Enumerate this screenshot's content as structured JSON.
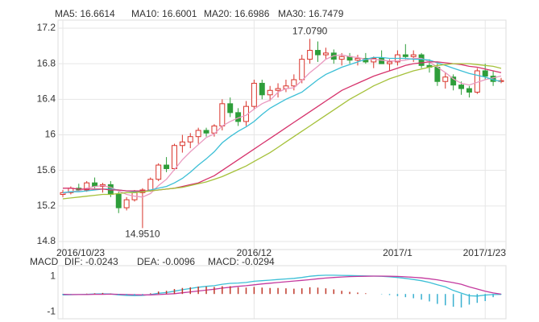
{
  "chart_data": [
    {
      "type": "candlestick",
      "categories": [
        "2016/10/23",
        null,
        null,
        null,
        null,
        null,
        null,
        null,
        null,
        null,
        null,
        null,
        null,
        null,
        null,
        null,
        null,
        null,
        null,
        null,
        null,
        null,
        null,
        null,
        "2016/12",
        null,
        null,
        null,
        null,
        null,
        null,
        null,
        null,
        null,
        null,
        null,
        null,
        null,
        null,
        null,
        null,
        null,
        "2017/1",
        null,
        null,
        null,
        null,
        null,
        null,
        null,
        null,
        null,
        null,
        "2017/1/23",
        null,
        null
      ],
      "open": [
        15.33,
        15.35,
        15.4,
        15.38,
        15.46,
        15.42,
        15.44,
        15.33,
        15.18,
        15.27,
        15.35,
        15.38,
        15.5,
        15.66,
        15.62,
        15.88,
        15.92,
        15.98,
        16.05,
        16.02,
        16.1,
        16.35,
        16.25,
        16.15,
        16.32,
        16.58,
        16.45,
        16.5,
        16.52,
        16.55,
        16.62,
        16.85,
        16.95,
        16.9,
        16.92,
        16.85,
        16.88,
        16.84,
        16.86,
        16.82,
        16.86,
        16.8,
        16.82,
        16.9,
        16.88,
        16.9,
        16.78,
        16.76,
        16.6,
        16.65,
        16.56,
        16.52,
        16.48,
        16.72,
        16.66,
        16.6
      ],
      "high": [
        15.38,
        15.42,
        15.45,
        15.48,
        15.52,
        15.46,
        15.48,
        15.36,
        15.3,
        15.38,
        15.4,
        15.52,
        15.68,
        15.75,
        15.9,
        16.0,
        16.02,
        16.08,
        16.08,
        16.12,
        16.4,
        16.42,
        16.3,
        16.38,
        16.62,
        16.62,
        16.55,
        16.58,
        16.62,
        16.68,
        16.9,
        17.079,
        17.05,
        16.98,
        16.96,
        16.92,
        16.92,
        16.9,
        16.92,
        16.88,
        16.95,
        16.85,
        16.95,
        17.02,
        16.95,
        16.92,
        16.85,
        16.8,
        16.7,
        16.68,
        16.6,
        16.55,
        16.75,
        16.8,
        16.72,
        16.64
      ],
      "low": [
        15.3,
        15.33,
        15.36,
        15.36,
        15.4,
        15.35,
        15.3,
        15.12,
        15.15,
        15.25,
        14.951,
        15.36,
        15.48,
        15.58,
        15.6,
        15.8,
        15.85,
        15.9,
        15.98,
        15.98,
        16.05,
        16.2,
        16.1,
        16.1,
        16.28,
        16.4,
        16.38,
        16.42,
        16.48,
        16.5,
        16.58,
        16.8,
        16.82,
        16.85,
        16.8,
        16.78,
        16.8,
        16.78,
        16.8,
        16.75,
        16.8,
        16.72,
        16.78,
        16.85,
        16.82,
        16.75,
        16.7,
        16.55,
        16.52,
        16.5,
        16.45,
        16.42,
        16.46,
        16.62,
        16.55,
        16.58
      ],
      "close": [
        15.35,
        15.4,
        15.38,
        15.46,
        15.42,
        15.44,
        15.33,
        15.18,
        15.27,
        15.35,
        15.38,
        15.5,
        15.66,
        15.62,
        15.88,
        15.92,
        15.98,
        16.05,
        16.02,
        16.1,
        16.35,
        16.25,
        16.15,
        16.32,
        16.58,
        16.45,
        16.5,
        16.52,
        16.55,
        16.62,
        16.85,
        16.95,
        16.9,
        16.92,
        16.85,
        16.88,
        16.84,
        16.86,
        16.82,
        16.86,
        16.8,
        16.82,
        16.9,
        16.88,
        16.9,
        16.78,
        16.76,
        16.6,
        16.65,
        16.56,
        16.52,
        16.48,
        16.72,
        16.66,
        16.6,
        16.61
      ],
      "up_color": "#d9342b",
      "down_color": "#2e9e3a",
      "series": [
        {
          "name": "MA5: 16.6614",
          "color": "#ea9ac0",
          "values": [
            15.34,
            15.36,
            15.37,
            15.4,
            15.42,
            15.43,
            15.41,
            15.37,
            15.33,
            15.31,
            15.3,
            15.34,
            15.43,
            15.5,
            15.61,
            15.72,
            15.81,
            15.89,
            15.97,
            16.01,
            16.1,
            16.15,
            16.19,
            16.22,
            16.29,
            16.35,
            16.39,
            16.48,
            16.52,
            16.53,
            16.61,
            16.7,
            16.77,
            16.85,
            16.89,
            16.9,
            16.88,
            16.87,
            16.85,
            16.85,
            16.84,
            16.83,
            16.83,
            16.84,
            16.86,
            16.86,
            16.82,
            16.76,
            16.7,
            16.63,
            16.58,
            16.56,
            16.59,
            16.62,
            16.64,
            16.6614
          ]
        },
        {
          "name": "MA10: 16.6001",
          "color": "#3cbfd6",
          "values": [
            15.35,
            15.36,
            15.36,
            15.37,
            15.38,
            15.39,
            15.39,
            15.38,
            15.37,
            15.36,
            15.36,
            15.38,
            15.4,
            15.42,
            15.46,
            15.51,
            15.58,
            15.66,
            15.73,
            15.81,
            15.91,
            15.98,
            16.04,
            16.09,
            16.15,
            16.23,
            16.3,
            16.35,
            16.4,
            16.44,
            16.48,
            16.55,
            16.62,
            16.68,
            16.72,
            16.76,
            16.79,
            16.82,
            16.85,
            16.87,
            16.87,
            16.86,
            16.86,
            16.86,
            16.85,
            16.85,
            16.84,
            16.81,
            16.78,
            16.75,
            16.72,
            16.69,
            16.67,
            16.65,
            16.62,
            16.6001
          ]
        },
        {
          "name": "MA20: 16.6986",
          "color": "#d6336c",
          "values": [
            15.4,
            15.4,
            15.39,
            15.39,
            15.39,
            15.39,
            15.38,
            15.38,
            15.37,
            15.37,
            15.37,
            15.37,
            15.38,
            15.39,
            15.4,
            15.42,
            15.44,
            15.46,
            15.5,
            15.54,
            15.6,
            15.66,
            15.72,
            15.78,
            15.84,
            15.9,
            15.96,
            16.02,
            16.08,
            16.14,
            16.2,
            16.26,
            16.32,
            16.38,
            16.44,
            16.5,
            16.54,
            16.58,
            16.62,
            16.66,
            16.69,
            16.72,
            16.75,
            16.78,
            16.8,
            16.81,
            16.82,
            16.82,
            16.81,
            16.8,
            16.79,
            16.77,
            16.76,
            16.74,
            16.72,
            16.6986
          ]
        },
        {
          "name": "MA30: 16.7479",
          "color": "#a5c13a",
          "values": [
            15.28,
            15.29,
            15.3,
            15.31,
            15.32,
            15.33,
            15.33,
            15.34,
            15.35,
            15.35,
            15.36,
            15.37,
            15.38,
            15.39,
            15.4,
            15.41,
            15.43,
            15.45,
            15.47,
            15.5,
            15.53,
            15.57,
            15.61,
            15.65,
            15.7,
            15.75,
            15.8,
            15.86,
            15.92,
            15.98,
            16.04,
            16.1,
            16.16,
            16.22,
            16.28,
            16.34,
            16.4,
            16.45,
            16.5,
            16.55,
            16.59,
            16.63,
            16.66,
            16.69,
            16.72,
            16.74,
            16.76,
            16.78,
            16.79,
            16.8,
            16.8,
            16.8,
            16.79,
            16.78,
            16.77,
            16.7479
          ]
        }
      ],
      "annotations": [
        {
          "label": "17.0790",
          "value": 17.079
        },
        {
          "label": "14.9510",
          "value": 14.951
        }
      ],
      "ylim": [
        14.71,
        17.29
      ],
      "yticks": [
        17.2,
        16.8,
        16.4,
        16,
        15.6,
        15.2,
        14.8
      ],
      "grid": true
    },
    {
      "type": "macd",
      "title": "MACD",
      "series": [
        {
          "name": "DIF: -0.0243",
          "color": "#3cbfd6",
          "values": [
            -0.05,
            -0.04,
            -0.03,
            -0.02,
            0.0,
            0.01,
            0.0,
            -0.05,
            -0.08,
            -0.09,
            -0.08,
            -0.03,
            0.04,
            0.08,
            0.16,
            0.24,
            0.31,
            0.38,
            0.43,
            0.47,
            0.55,
            0.6,
            0.62,
            0.65,
            0.72,
            0.75,
            0.78,
            0.82,
            0.85,
            0.88,
            0.93,
            1.0,
            1.04,
            1.06,
            1.06,
            1.05,
            1.04,
            1.03,
            1.02,
            1.01,
            1.0,
            0.97,
            0.93,
            0.88,
            0.82,
            0.75,
            0.65,
            0.52,
            0.4,
            0.2,
            0.05,
            -0.1,
            -0.12,
            -0.06,
            -0.03,
            -0.0243
          ]
        },
        {
          "name": "DEA: -0.0096",
          "color": "#c4399e",
          "values": [
            -0.02,
            -0.03,
            -0.03,
            -0.03,
            -0.02,
            -0.02,
            -0.01,
            -0.02,
            -0.03,
            -0.04,
            -0.05,
            -0.05,
            -0.03,
            -0.01,
            0.02,
            0.07,
            0.12,
            0.17,
            0.22,
            0.27,
            0.33,
            0.38,
            0.43,
            0.47,
            0.52,
            0.57,
            0.61,
            0.65,
            0.69,
            0.73,
            0.77,
            0.81,
            0.86,
            0.9,
            0.93,
            0.96,
            0.98,
            0.99,
            1.0,
            1.01,
            1.01,
            1.0,
            0.99,
            0.97,
            0.94,
            0.91,
            0.86,
            0.8,
            0.72,
            0.64,
            0.55,
            0.4,
            0.28,
            0.16,
            0.06,
            -0.0096
          ]
        },
        {
          "name": "MACD: -0.0294",
          "type": "bar",
          "color": "#c0392b",
          "negative_color": "#39b0d0",
          "values": [
            -0.06,
            -0.02,
            0.0,
            0.02,
            0.04,
            0.06,
            0.02,
            -0.06,
            -0.1,
            -0.1,
            -0.06,
            0.04,
            0.14,
            0.18,
            0.28,
            0.34,
            0.38,
            0.42,
            0.42,
            0.4,
            0.44,
            0.44,
            0.38,
            0.36,
            0.4,
            0.36,
            0.34,
            0.34,
            0.32,
            0.3,
            0.32,
            0.38,
            0.36,
            0.32,
            0.26,
            0.18,
            0.12,
            0.08,
            0.04,
            0.0,
            -0.02,
            -0.06,
            -0.12,
            -0.18,
            -0.24,
            -0.32,
            -0.42,
            -0.56,
            -0.64,
            -0.72,
            -0.76,
            -0.6,
            -0.5,
            -0.4,
            -0.18,
            -0.0294
          ]
        }
      ],
      "ylim": [
        -1.4,
        1.6
      ],
      "yticks": [
        1,
        -1
      ]
    }
  ]
}
